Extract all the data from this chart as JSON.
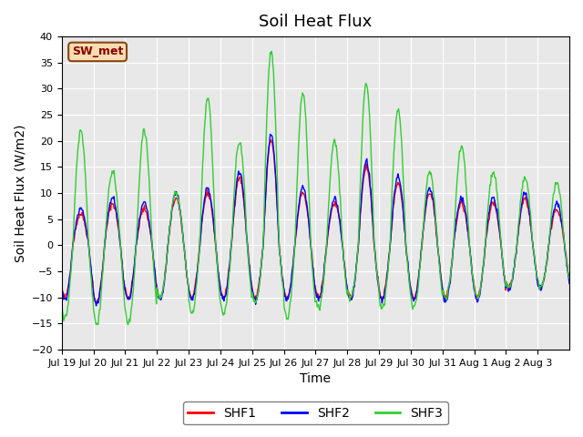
{
  "title": "Soil Heat Flux",
  "ylabel": "Soil Heat Flux (W/m2)",
  "xlabel": "Time",
  "ylim": [
    -20,
    40
  ],
  "bg_color": "#e8e8e8",
  "fig_bg_color": "#ffffff",
  "station_label": "SW_met",
  "legend_labels": [
    "SHF1",
    "SHF2",
    "SHF3"
  ],
  "line_colors": [
    "red",
    "blue",
    "limegreen"
  ],
  "xtick_labels": [
    "Jul 19",
    "Jul 20",
    "Jul 21",
    "Jul 22",
    "Jul 23",
    "Jul 24",
    "Jul 25",
    "Jul 26",
    "Jul 27",
    "Jul 28",
    "Jul 29",
    "Jul 30",
    "Jul 31",
    "Aug 1",
    "Aug 2",
    "Aug 3"
  ],
  "ytick_vals": [
    -20,
    -15,
    -10,
    -5,
    0,
    5,
    10,
    15,
    20,
    25,
    30,
    35,
    40
  ],
  "grid_color": "#ffffff",
  "title_fontsize": 13,
  "label_fontsize": 10,
  "tick_fontsize": 8,
  "station_facecolor": "#F5DEB3",
  "station_edgecolor": "#8B4513",
  "station_textcolor": "#8B0000",
  "n_days": 16,
  "amp1_day": [
    6,
    8,
    7,
    9,
    10,
    13,
    20,
    10,
    8,
    15,
    12,
    10,
    8,
    8,
    9,
    7
  ],
  "amp1_night": [
    10,
    11,
    10,
    10,
    10,
    10,
    10,
    10,
    10,
    10,
    10,
    10,
    10,
    10,
    8,
    8
  ],
  "amp3_day": [
    22,
    14,
    22,
    10,
    28,
    20,
    37,
    29,
    20,
    31,
    26,
    14,
    19,
    14,
    13,
    12
  ],
  "amp3_night": [
    14,
    15,
    15,
    10,
    13,
    13,
    11,
    14,
    12,
    10,
    12,
    12,
    10,
    10,
    8,
    8
  ]
}
